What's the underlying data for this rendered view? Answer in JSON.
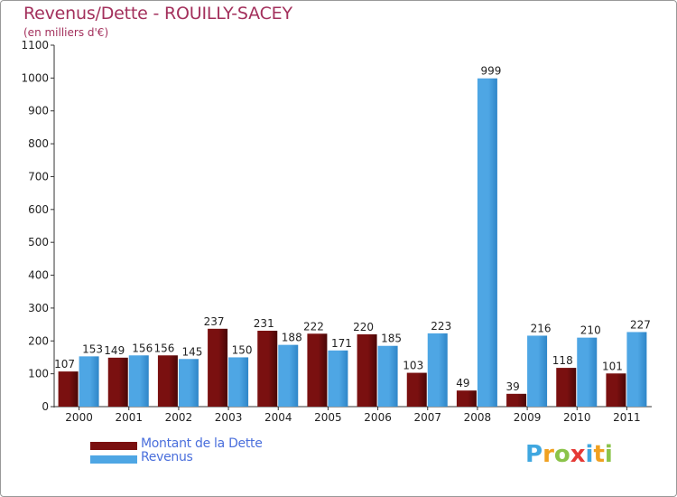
{
  "chart_data": {
    "type": "bar",
    "title": "Revenus/Dette - ROUILLY-SACEY",
    "subtitle": "(en milliers d'€)",
    "categories": [
      "2000",
      "2001",
      "2002",
      "2003",
      "2004",
      "2005",
      "2006",
      "2007",
      "2008",
      "2009",
      "2010",
      "2011"
    ],
    "series": [
      {
        "name": "Montant de la Dette",
        "color": "#7a1010",
        "values": [
          107,
          149,
          156,
          237,
          231,
          222,
          220,
          103,
          49,
          39,
          118,
          101
        ]
      },
      {
        "name": "Revenus",
        "color": "#4ea6e4",
        "values": [
          153,
          156,
          145,
          150,
          188,
          171,
          185,
          223,
          999,
          216,
          210,
          227
        ]
      }
    ],
    "ylim": [
      0,
      1100
    ],
    "yticks": [
      0,
      100,
      200,
      300,
      400,
      500,
      600,
      700,
      800,
      900,
      1000,
      1100
    ],
    "grid": false,
    "legend_position": "bottom-left"
  },
  "logo": {
    "letters": [
      {
        "char": "P",
        "color": "#3fa7e0"
      },
      {
        "char": "r",
        "color": "#f0a020"
      },
      {
        "char": "o",
        "color": "#8bc34a"
      },
      {
        "char": "x",
        "color": "#e53935"
      },
      {
        "char": "i",
        "color": "#3fa7e0"
      },
      {
        "char": "t",
        "color": "#f0a020"
      },
      {
        "char": "i",
        "color": "#8bc34a"
      }
    ]
  }
}
